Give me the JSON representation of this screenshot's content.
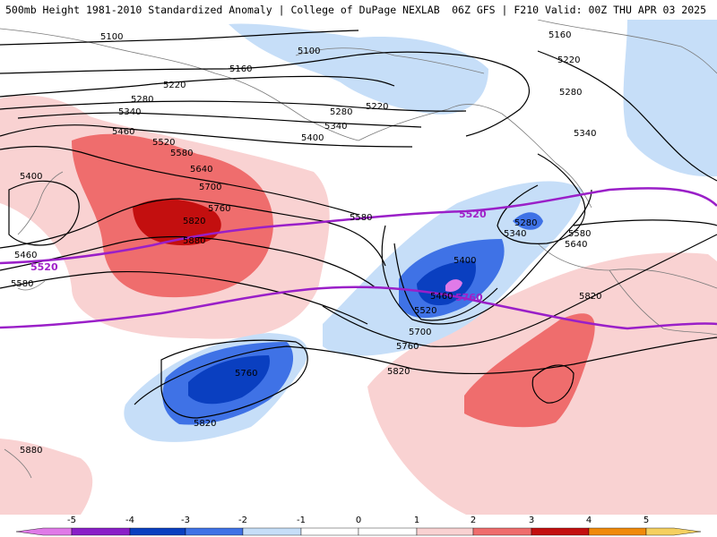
{
  "header": {
    "title_left": "500mb Height 1981-2010 Standardized Anomaly | College of DuPage NEXLAB",
    "title_right": "06Z GFS | F210 Valid: 00Z THU APR 03 2025"
  },
  "colors": {
    "neg5": "#e07ae8",
    "neg4": "#8a1fc8",
    "neg3": "#0a3fc0",
    "neg2": "#3f72e6",
    "neg1": "#c6def8",
    "pos1": "#f9d2d2",
    "pos2": "#ef6d6d",
    "pos3": "#c30f0f",
    "pos4": "#f08a0a",
    "pos5": "#f5d060",
    "contour": "#000000",
    "highlight_contour": "#9a1fc8",
    "coast": "#7a7a7a"
  },
  "contour_labels": [
    "5100",
    "5160",
    "5220",
    "5280",
    "5340",
    "5400",
    "5460",
    "5520",
    "5580",
    "5640",
    "5700",
    "5760",
    "5820",
    "5880"
  ],
  "highlight_labels": [
    "5520",
    "5760"
  ],
  "colorbar": {
    "ticks": [
      "-5",
      "-4",
      "-3",
      "-2",
      "-1",
      "0",
      "1",
      "2",
      "3",
      "4",
      "5"
    ]
  }
}
